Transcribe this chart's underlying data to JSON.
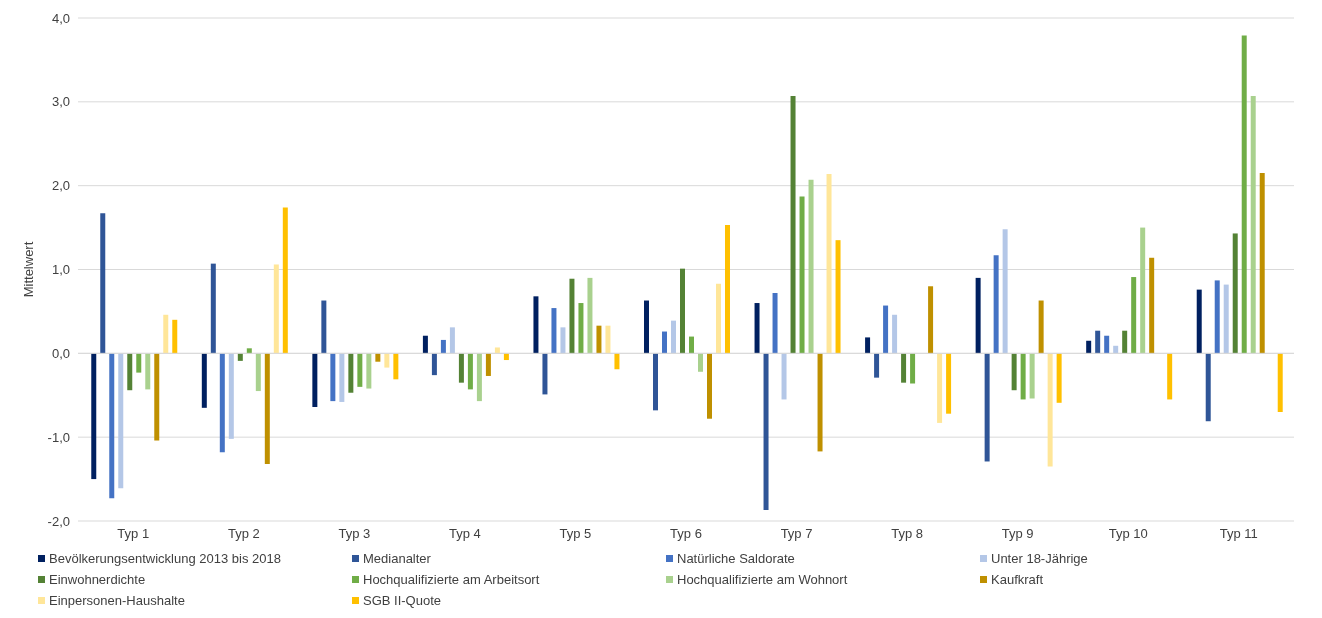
{
  "chart_data": {
    "type": "bar",
    "ylabel": "Mittelwert",
    "categories": [
      "Typ 1",
      "Typ 2",
      "Typ 3",
      "Typ 4",
      "Typ 5",
      "Typ 6",
      "Typ 7",
      "Typ 8",
      "Typ 9",
      "Typ 10",
      "Typ 11"
    ],
    "series": [
      {
        "name": "Bevölkerungsentwicklung 2013 bis 2018",
        "color": "#002060",
        "values": [
          -1.5,
          -0.65,
          -0.64,
          0.21,
          0.68,
          0.63,
          0.6,
          0.19,
          0.9,
          0.15,
          0.76
        ]
      },
      {
        "name": "Medianalter",
        "color": "#2f5597",
        "values": [
          1.67,
          1.07,
          0.63,
          -0.26,
          -0.49,
          -0.68,
          -1.87,
          -0.29,
          -1.29,
          0.27,
          -0.81
        ]
      },
      {
        "name": "Natürliche Saldorate",
        "color": "#4472c4",
        "values": [
          -1.73,
          -1.18,
          -0.57,
          0.16,
          0.54,
          0.26,
          0.72,
          0.57,
          1.17,
          0.21,
          0.87
        ]
      },
      {
        "name": "Unter 18-Jährige",
        "color": "#b4c7e7",
        "values": [
          -1.61,
          -1.02,
          -0.58,
          0.31,
          0.31,
          0.39,
          -0.55,
          0.46,
          1.48,
          0.09,
          0.82
        ]
      },
      {
        "name": "Einwohnerdichte",
        "color": "#548235",
        "values": [
          -0.44,
          -0.09,
          -0.47,
          -0.35,
          0.89,
          1.01,
          3.07,
          -0.35,
          -0.44,
          0.27,
          1.43
        ]
      },
      {
        "name": "Hochqualifizierte am Arbeitsort",
        "color": "#70ad47",
        "values": [
          -0.23,
          0.06,
          -0.4,
          -0.43,
          0.6,
          0.2,
          1.87,
          -0.36,
          -0.55,
          0.91,
          3.79
        ]
      },
      {
        "name": "Hochqualifizierte am Wohnort",
        "color": "#a9d18e",
        "values": [
          -0.43,
          -0.45,
          -0.42,
          -0.57,
          0.9,
          -0.22,
          2.07,
          null,
          -0.54,
          1.5,
          3.07
        ]
      },
      {
        "name": "Kaufkraft",
        "color": "#bf9000",
        "values": [
          -1.04,
          -1.32,
          -0.1,
          -0.27,
          0.33,
          -0.78,
          -1.17,
          0.8,
          0.63,
          1.14,
          2.15
        ]
      },
      {
        "name": "Einpersonen-Haushalte",
        "color": "#ffe699",
        "values": [
          0.46,
          1.06,
          -0.17,
          0.07,
          0.33,
          0.83,
          2.14,
          -0.83,
          -1.35,
          null,
          null
        ]
      },
      {
        "name": "SGB II-Quote",
        "color": "#ffc000",
        "values": [
          0.4,
          1.74,
          -0.31,
          -0.08,
          -0.19,
          1.53,
          1.35,
          -0.72,
          -0.59,
          -0.55,
          -0.7
        ]
      }
    ],
    "ylim": [
      -2,
      4
    ],
    "yticks": [
      {
        "value": -2,
        "label": "-2,0"
      },
      {
        "value": -1,
        "label": "-1,0"
      },
      {
        "value": 0,
        "label": "0,0"
      },
      {
        "value": 1,
        "label": "1,0"
      },
      {
        "value": 2,
        "label": "2,0"
      },
      {
        "value": 3,
        "label": "3,0"
      },
      {
        "value": 4,
        "label": "4,0"
      }
    ],
    "grid": "y",
    "legend": "bottom"
  }
}
